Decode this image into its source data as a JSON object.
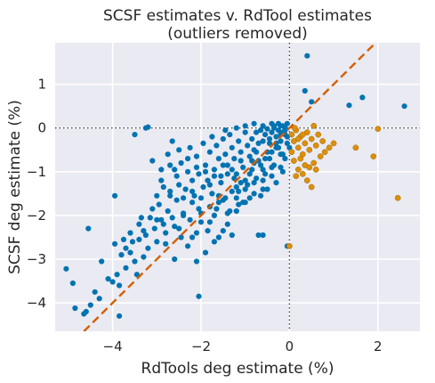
{
  "chart_data": {
    "type": "scatter",
    "title": "SCSF estimates v. RdTool estimates",
    "subtitle": "(outliers removed)",
    "xlabel": "RdTools deg estimate (%)",
    "ylabel": "SCSF deg estimate (%)",
    "xlim": [
      -5.3,
      2.95
    ],
    "ylim": [
      -4.65,
      1.95
    ],
    "xticks": [
      -4,
      -2,
      0,
      2
    ],
    "yticks": [
      -4,
      -3,
      -2,
      -1,
      0,
      1
    ],
    "xtick_labels": [
      "−4",
      "−2",
      "0",
      "2"
    ],
    "ytick_labels": [
      "−4",
      "−3",
      "−2",
      "−1",
      "0",
      "1"
    ],
    "grid": true,
    "background": "#eaeaf2",
    "reference_lines": {
      "zero_style": "dotted",
      "zero_color": "#444444",
      "diagonal_style": "dashed",
      "diagonal_color": "#d55e00"
    },
    "series": [
      {
        "color": "#0173b2",
        "points": [
          [
            -5.05,
            -3.22
          ],
          [
            -4.9,
            -3.55
          ],
          [
            -4.85,
            -4.12
          ],
          [
            -4.6,
            -4.2
          ],
          [
            -4.5,
            -4.05
          ],
          [
            -4.65,
            -4.25
          ],
          [
            -4.4,
            -3.75
          ],
          [
            -4.3,
            -3.9
          ],
          [
            -4.55,
            -2.3
          ],
          [
            -4.25,
            -3.05
          ],
          [
            -4.1,
            -3.45
          ],
          [
            -4.0,
            -3.52
          ],
          [
            -3.95,
            -2.65
          ],
          [
            -3.9,
            -3.35
          ],
          [
            -3.85,
            -3.6
          ],
          [
            -3.8,
            -2.9
          ],
          [
            -3.75,
            -2.55
          ],
          [
            -3.7,
            -2.75
          ],
          [
            -3.85,
            -4.3
          ],
          [
            -3.6,
            -2.4
          ],
          [
            -3.5,
            -3.05
          ],
          [
            -3.4,
            -2.2
          ],
          [
            -3.3,
            -2.35
          ],
          [
            -3.2,
            -2.75
          ],
          [
            -3.1,
            -1.85
          ],
          [
            -3.0,
            -2.6
          ],
          [
            -2.9,
            -2.1
          ],
          [
            -2.8,
            -2.65
          ],
          [
            -2.7,
            -1.55
          ],
          [
            -2.6,
            -3.0
          ],
          [
            -2.5,
            -2.3
          ],
          [
            -2.4,
            -1.95
          ],
          [
            -2.3,
            -2.7
          ],
          [
            -2.2,
            -1.7
          ],
          [
            -2.1,
            -2.4
          ],
          [
            -2.0,
            -2.15
          ],
          [
            -1.9,
            -2.85
          ],
          [
            -1.8,
            -1.8
          ],
          [
            -1.7,
            -2.0
          ],
          [
            -1.6,
            -2.5
          ],
          [
            -1.5,
            -1.65
          ],
          [
            -1.4,
            -2.2
          ],
          [
            -1.3,
            -1.45
          ],
          [
            -1.2,
            -1.9
          ],
          [
            -1.1,
            -1.25
          ],
          [
            -1.0,
            -1.7
          ],
          [
            -0.9,
            -1.05
          ],
          [
            -0.8,
            -1.5
          ],
          [
            -0.7,
            -0.75
          ],
          [
            -0.6,
            -1.2
          ],
          [
            -0.5,
            -0.55
          ],
          [
            -0.4,
            -0.9
          ],
          [
            -0.3,
            -0.35
          ],
          [
            -0.2,
            -0.6
          ],
          [
            -0.1,
            -0.15
          ],
          [
            0.0,
            -0.45
          ],
          [
            -3.95,
            -1.55
          ],
          [
            -3.5,
            -0.15
          ],
          [
            -3.25,
            0.0
          ],
          [
            -3.2,
            0.02
          ],
          [
            -3.1,
            -0.75
          ],
          [
            -3.0,
            -1.55
          ],
          [
            -2.9,
            -0.95
          ],
          [
            -2.85,
            -1.35
          ],
          [
            -2.75,
            -0.6
          ],
          [
            -2.65,
            -0.3
          ],
          [
            -2.55,
            -1.1
          ],
          [
            -2.5,
            -1.3
          ],
          [
            -2.45,
            -0.8
          ],
          [
            -2.3,
            -1.0
          ],
          [
            -2.25,
            -0.45
          ],
          [
            -2.2,
            -1.2
          ],
          [
            -2.1,
            -0.65
          ],
          [
            -2.05,
            -1.05
          ],
          [
            -1.95,
            -0.35
          ],
          [
            -1.9,
            -0.85
          ],
          [
            -1.85,
            -1.2
          ],
          [
            -1.8,
            -0.55
          ],
          [
            -1.75,
            -0.2
          ],
          [
            -1.7,
            -0.95
          ],
          [
            -1.65,
            -0.4
          ],
          [
            -1.6,
            -0.7
          ],
          [
            -1.55,
            -1.1
          ],
          [
            -1.5,
            -0.25
          ],
          [
            -1.45,
            -0.6
          ],
          [
            -1.4,
            -0.85
          ],
          [
            -1.35,
            -0.15
          ],
          [
            -1.3,
            -0.45
          ],
          [
            -1.25,
            -0.7
          ],
          [
            -1.2,
            -1.05
          ],
          [
            -1.15,
            -0.3
          ],
          [
            -1.1,
            -0.55
          ],
          [
            -1.05,
            -0.9
          ],
          [
            -1.0,
            -0.1
          ],
          [
            -0.95,
            -0.4
          ],
          [
            -0.9,
            -0.65
          ],
          [
            -0.85,
            -0.25
          ],
          [
            -0.8,
            -0.5
          ],
          [
            -0.75,
            -0.1
          ],
          [
            -0.7,
            -0.35
          ],
          [
            -0.65,
            -0.05
          ],
          [
            -0.6,
            -0.3
          ],
          [
            -0.55,
            -0.15
          ],
          [
            -0.5,
            -0.02
          ],
          [
            -0.45,
            -0.25
          ],
          [
            -0.4,
            -0.1
          ],
          [
            -0.35,
            0.0
          ],
          [
            -0.3,
            -0.2
          ],
          [
            -0.25,
            -0.05
          ],
          [
            -0.2,
            0.05
          ],
          [
            -0.15,
            -0.1
          ],
          [
            -0.1,
            0.0
          ],
          [
            -3.15,
            -2.05
          ],
          [
            -3.05,
            -2.3
          ],
          [
            -2.95,
            -1.75
          ],
          [
            -2.85,
            -2.2
          ],
          [
            -2.75,
            -1.9
          ],
          [
            -2.65,
            -2.05
          ],
          [
            -2.55,
            -1.65
          ],
          [
            -2.45,
            -2.5
          ],
          [
            -2.35,
            -1.4
          ],
          [
            -2.25,
            -2.1
          ],
          [
            -2.15,
            -1.55
          ],
          [
            -2.05,
            -1.85
          ],
          [
            -1.95,
            -1.35
          ],
          [
            -1.85,
            -2.35
          ],
          [
            -1.75,
            -1.5
          ],
          [
            -1.65,
            -1.85
          ],
          [
            -1.55,
            -1.25
          ],
          [
            -1.45,
            -1.6
          ],
          [
            -1.35,
            -1.9
          ],
          [
            -1.25,
            -1.15
          ],
          [
            -1.15,
            -1.45
          ],
          [
            -1.05,
            -1.7
          ],
          [
            -0.95,
            -1.3
          ],
          [
            -0.85,
            -0.95
          ],
          [
            -0.75,
            -1.15
          ],
          [
            -0.65,
            -0.85
          ],
          [
            -0.55,
            -1.05
          ],
          [
            -0.45,
            -0.7
          ],
          [
            -0.35,
            -0.85
          ],
          [
            -0.25,
            -0.45
          ],
          [
            -0.15,
            -0.6
          ],
          [
            -0.05,
            -0.35
          ],
          [
            -2.9,
            -1.2
          ],
          [
            -2.7,
            -1.45
          ],
          [
            -2.6,
            -0.95
          ],
          [
            -2.4,
            -1.6
          ],
          [
            -2.2,
            -1.45
          ],
          [
            -2.0,
            -1.6
          ],
          [
            -1.8,
            -1.3
          ],
          [
            -1.6,
            -1.55
          ],
          [
            -1.4,
            -1.05
          ],
          [
            -1.2,
            -1.35
          ],
          [
            -1.0,
            -1.2
          ],
          [
            -0.8,
            -0.8
          ],
          [
            -0.6,
            -0.95
          ],
          [
            -0.4,
            -0.55
          ],
          [
            -0.2,
            -0.3
          ],
          [
            -0.05,
            -0.2
          ],
          [
            -3.0,
            -2.1
          ],
          [
            -2.8,
            -2.4
          ],
          [
            -2.6,
            -2.25
          ],
          [
            -2.4,
            -2.0
          ],
          [
            -2.2,
            -2.5
          ],
          [
            -2.0,
            -1.95
          ],
          [
            -1.8,
            -2.15
          ],
          [
            -1.6,
            -1.7
          ],
          [
            -1.4,
            -1.95
          ],
          [
            -1.2,
            -1.6
          ],
          [
            -1.0,
            -1.4
          ],
          [
            -0.8,
            -1.25
          ],
          [
            -0.6,
            -1.4
          ],
          [
            -0.4,
            -1.1
          ],
          [
            -0.2,
            -0.9
          ],
          [
            -0.1,
            -0.7
          ],
          [
            -3.4,
            -2.55
          ],
          [
            -3.3,
            -2.95
          ],
          [
            -3.6,
            -2.85
          ],
          [
            -3.7,
            -3.2
          ],
          [
            -3.55,
            -2.6
          ],
          [
            -3.45,
            -3.35
          ],
          [
            -3.35,
            -2.05
          ],
          [
            -3.25,
            -2.45
          ],
          [
            -2.1,
            -3.05
          ],
          [
            -1.7,
            -2.6
          ],
          [
            -1.5,
            -2.35
          ],
          [
            -1.3,
            -2.45
          ],
          [
            -2.05,
            -3.85
          ],
          [
            -0.7,
            -2.45
          ],
          [
            -0.6,
            -2.45
          ],
          [
            -0.05,
            -2.7
          ],
          [
            -0.1,
            -0.05
          ],
          [
            -0.2,
            -0.15
          ],
          [
            -0.3,
            -0.45
          ],
          [
            -0.45,
            -0.35
          ],
          [
            -0.55,
            -0.7
          ],
          [
            -0.75,
            -0.55
          ],
          [
            -0.85,
            -0.75
          ],
          [
            -1.1,
            -0.75
          ],
          [
            -1.3,
            -0.95
          ],
          [
            -1.5,
            -0.85
          ],
          [
            -1.7,
            -1.1
          ],
          [
            -1.9,
            -1.0
          ],
          [
            -2.1,
            -0.9
          ],
          [
            -2.3,
            -0.7
          ],
          [
            -2.5,
            -0.5
          ],
          [
            -2.7,
            -0.85
          ],
          [
            -0.5,
            -1.4
          ],
          [
            -0.3,
            -1.25
          ],
          [
            -0.15,
            -1.0
          ],
          [
            -0.65,
            -1.55
          ],
          [
            -0.9,
            -1.6
          ],
          [
            -1.15,
            -1.75
          ],
          [
            -0.35,
            0.05
          ],
          [
            -0.25,
            0.1
          ],
          [
            -0.15,
            0.05
          ],
          [
            -0.05,
            0.1
          ],
          [
            -0.4,
            0.1
          ],
          [
            -0.6,
            0.05
          ],
          [
            -0.8,
            0.1
          ],
          [
            -1.0,
            0.05
          ],
          [
            -1.2,
            0.0
          ],
          [
            -1.45,
            -0.05
          ],
          [
            0.4,
            1.65
          ],
          [
            0.35,
            0.85
          ],
          [
            0.5,
            0.6
          ],
          [
            1.35,
            0.52
          ],
          [
            1.65,
            0.7
          ],
          [
            2.6,
            0.5
          ]
        ]
      },
      {
        "color": "#de8f05",
        "points": [
          [
            0.05,
            -0.15
          ],
          [
            0.1,
            -0.3
          ],
          [
            0.15,
            -0.05
          ],
          [
            0.2,
            -0.45
          ],
          [
            0.25,
            -0.2
          ],
          [
            0.3,
            -0.6
          ],
          [
            0.35,
            -0.35
          ],
          [
            0.4,
            -0.1
          ],
          [
            0.45,
            -0.5
          ],
          [
            0.5,
            -0.25
          ],
          [
            0.55,
            -0.8
          ],
          [
            0.6,
            -0.4
          ],
          [
            0.65,
            -0.15
          ],
          [
            0.7,
            -0.65
          ],
          [
            0.75,
            -0.3
          ],
          [
            0.8,
            -0.55
          ],
          [
            0.1,
            -0.75
          ],
          [
            0.2,
            -0.95
          ],
          [
            0.3,
            -1.05
          ],
          [
            0.4,
            -1.2
          ],
          [
            0.45,
            -0.9
          ],
          [
            0.5,
            -1.35
          ],
          [
            0.15,
            -1.1
          ],
          [
            0.25,
            -0.7
          ],
          [
            0.05,
            -0.55
          ],
          [
            0.35,
            -0.85
          ],
          [
            0.6,
            -0.95
          ],
          [
            0.9,
            -0.45
          ],
          [
            1.0,
            -0.35
          ],
          [
            1.5,
            -0.45
          ],
          [
            1.9,
            -0.65
          ],
          [
            2.0,
            -0.02
          ],
          [
            2.45,
            -1.6
          ],
          [
            0.0,
            -2.7
          ],
          [
            0.12,
            0.0
          ],
          [
            0.55,
            0.05
          ],
          [
            0.3,
            -0.15
          ],
          [
            0.2,
            -0.25
          ]
        ]
      }
    ]
  }
}
